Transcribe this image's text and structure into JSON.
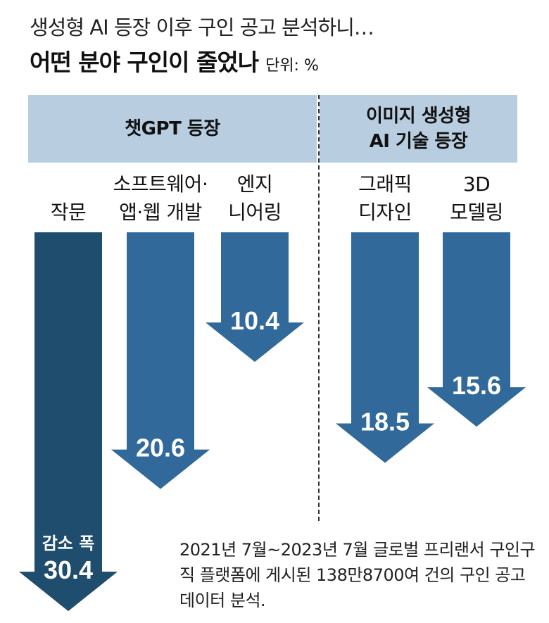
{
  "header": {
    "subtitle": "생성형 AI 등장 이후 구인 공고 분석하니…",
    "title": "어떤 분야 구인이 줄었나",
    "unit": "단위: %"
  },
  "groups": [
    {
      "label": "챗GPT 등장"
    },
    {
      "label": "이미지 생성형\nAI 기술 등장"
    }
  ],
  "chart_data": {
    "type": "bar",
    "title": "어떤 분야 구인이 줄었나",
    "unit": "%",
    "orientation": "downward arrows",
    "categories": [
      "작문",
      "소프트웨어·앱·웹 개발",
      "엔지니어링",
      "그래픽 디자인",
      "3D 모델링"
    ],
    "category_labels": [
      "작문",
      "소프트웨어·\n앱·웹 개발",
      "엔지\n니어링",
      "그래픽\n디자인",
      "3D\n모델링"
    ],
    "groups": [
      "챗GPT 등장",
      "챗GPT 등장",
      "챗GPT 등장",
      "이미지 생성형 AI 기술 등장",
      "이미지 생성형 AI 기술 등장"
    ],
    "values": [
      30.4,
      20.6,
      10.4,
      18.5,
      15.6
    ],
    "value_labels": [
      "30.4",
      "20.6",
      "10.4",
      "18.5",
      "15.6"
    ],
    "first_value_prefix": "감소 폭",
    "colors": [
      "#1e4d6e",
      "#31699a",
      "#31699a",
      "#31699a",
      "#31699a"
    ]
  },
  "footnote": "2021년 7월~2023년 7월 글로벌 프리랜서 구인구직 플랫폼에 게시된 138만8700여 건의 구인 공고 데이터 분석."
}
